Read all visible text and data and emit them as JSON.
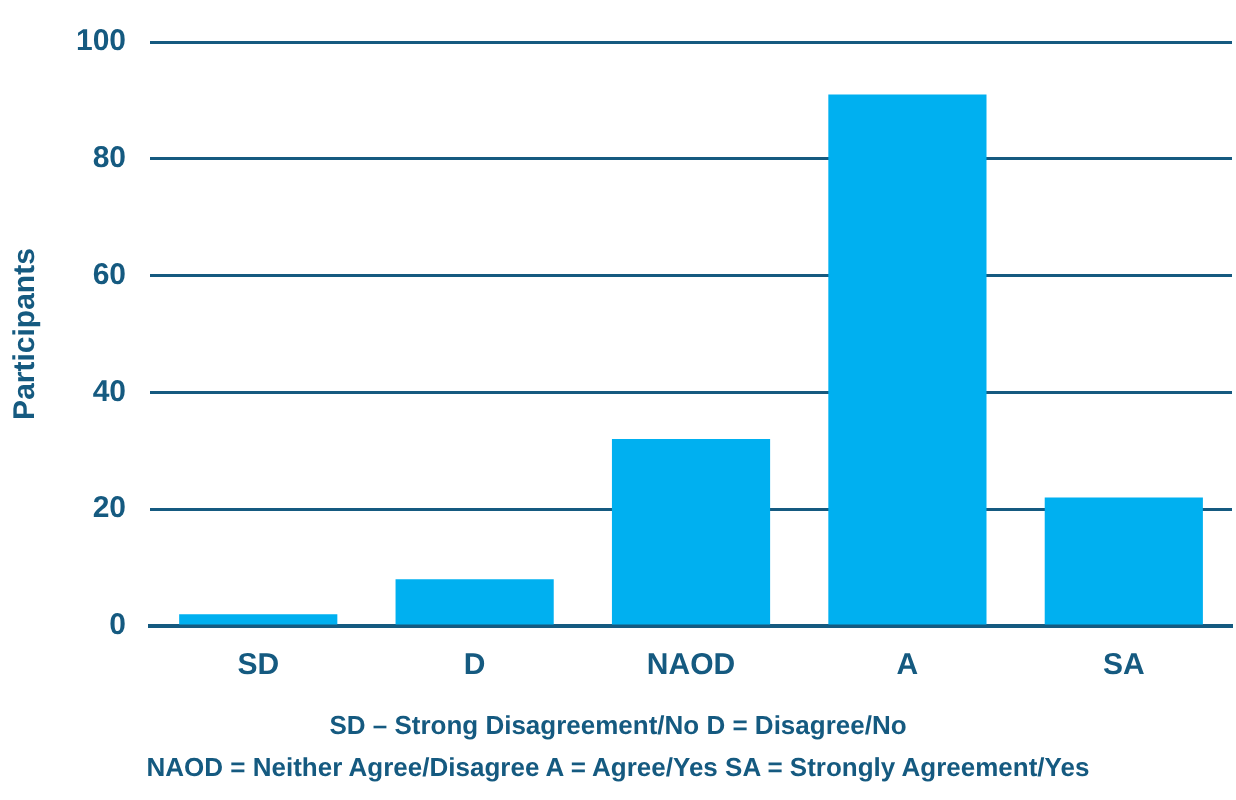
{
  "chart_data": {
    "type": "bar",
    "ylabel": "Participants",
    "categories": [
      "SD",
      "D",
      "NAOD",
      "A",
      "SA"
    ],
    "values": [
      2,
      8,
      32,
      91,
      22
    ],
    "color": "#00b0f0",
    "ylim": [
      0,
      100
    ],
    "yticks": [
      0,
      20,
      40,
      60,
      80,
      100
    ],
    "grid": "y",
    "legend": false,
    "annotations": [
      "SD – Strong Disagreement/No    D = Disagree/No",
      "NAOD = Neither Agree/Disagree    A = Agree/Yes    SA = Strongly Agreement/Yes"
    ]
  }
}
